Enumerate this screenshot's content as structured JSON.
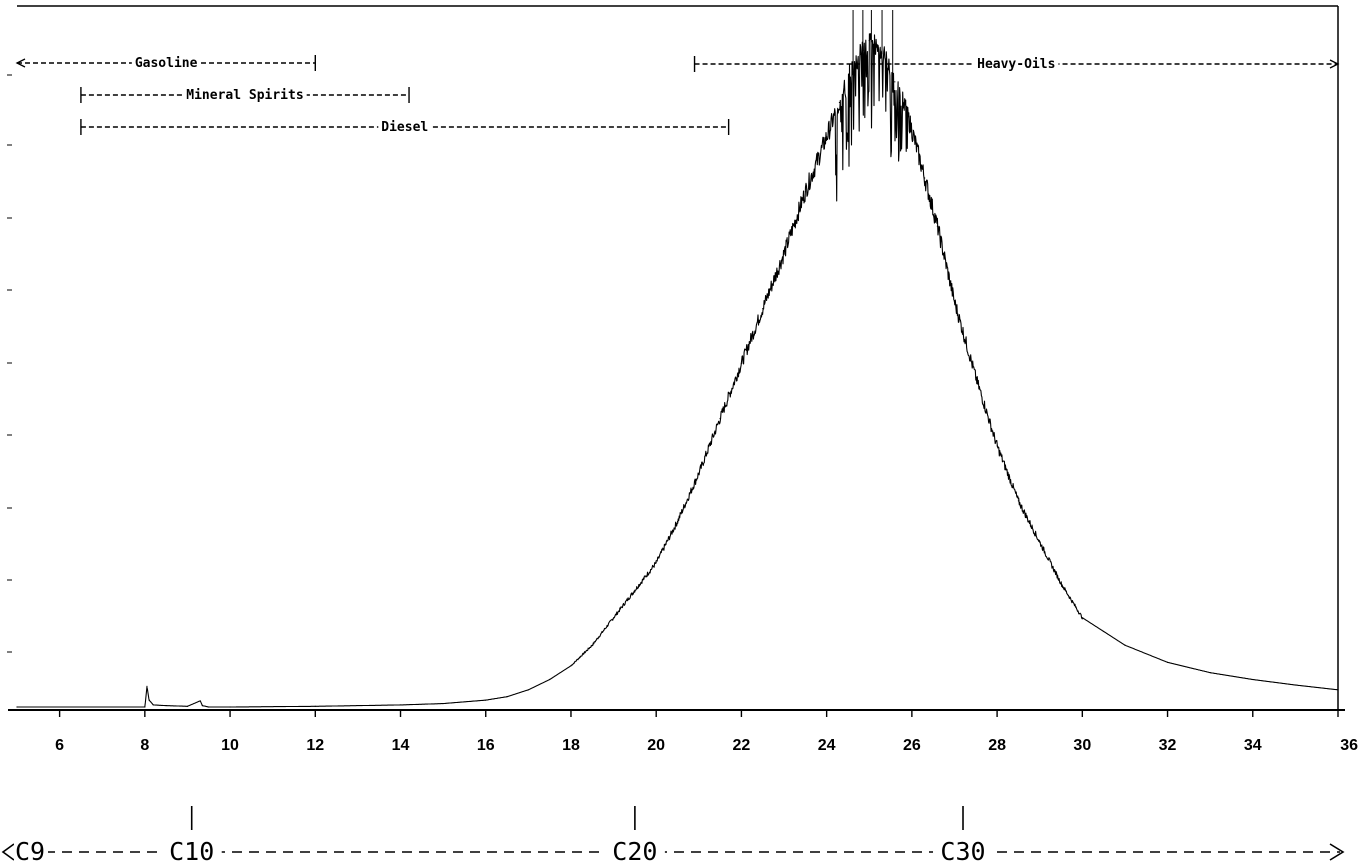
{
  "chart_data": {
    "type": "line",
    "title": "",
    "xlabel": "",
    "ylabel": "",
    "xlim": [
      5,
      36
    ],
    "ylim": [
      0,
      100
    ],
    "grid": false,
    "x_ticks": [
      6,
      8,
      10,
      12,
      14,
      16,
      18,
      20,
      22,
      24,
      26,
      28,
      30,
      32,
      34,
      36
    ],
    "range_annotations": [
      {
        "label": "Gasoline",
        "start": 5,
        "end": 12,
        "open_left": true,
        "open_right": false
      },
      {
        "label": "Mineral Spirits",
        "start": 6.5,
        "end": 14.2,
        "open_left": false,
        "open_right": false
      },
      {
        "label": "Diesel",
        "start": 6.5,
        "end": 21.7,
        "open_left": false,
        "open_right": false
      },
      {
        "label": "Heavy-Oils",
        "start": 20.9,
        "end": 36,
        "open_left": false,
        "open_right": true
      }
    ],
    "carbon_markers": [
      {
        "label": "C9",
        "x": 5
      },
      {
        "label": "C10",
        "x": 9.1
      },
      {
        "label": "C20",
        "x": 19.5
      },
      {
        "label": "C30",
        "x": 27.2
      }
    ],
    "series": [
      {
        "x": [
          5,
          8,
          8.05,
          8.1,
          8.2,
          8.5,
          9,
          9.3,
          9.35,
          9.5,
          10,
          12,
          14,
          15,
          16,
          16.5,
          17,
          17.5,
          18,
          18.5,
          19,
          19.5,
          20,
          20.5,
          21,
          21.5,
          22,
          22.5,
          23,
          23.5,
          24,
          24.3,
          24.6,
          24.8,
          25,
          25.2,
          25.4,
          25.6,
          25.8,
          26,
          26.3,
          26.6,
          27,
          27.5,
          28,
          28.5,
          29,
          29.5,
          30,
          30.5,
          31,
          32,
          33,
          34,
          35,
          36
        ],
        "y": [
          0,
          0,
          3,
          1,
          0.3,
          0.2,
          0.1,
          0.9,
          0.2,
          0,
          0,
          0.1,
          0.3,
          0.5,
          1,
          1.5,
          2.5,
          4,
          6,
          9,
          13,
          17,
          21,
          27,
          34,
          42,
          50,
          58,
          66,
          75,
          83,
          88,
          93,
          95,
          97,
          96,
          94,
          91,
          88,
          84,
          77,
          70,
          59,
          48,
          38,
          30,
          24,
          18,
          13,
          11,
          9,
          6.5,
          5,
          4,
          3.2,
          2.5
        ]
      }
    ]
  }
}
